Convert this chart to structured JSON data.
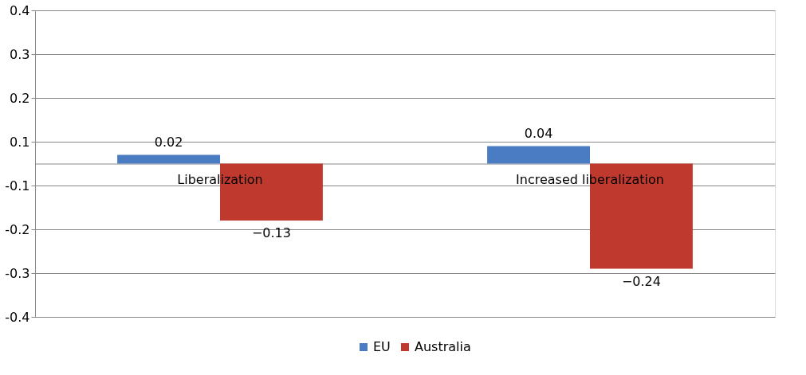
{
  "chart_data": {
    "type": "bar",
    "categories": [
      "Liberalization",
      "Increased liberalization"
    ],
    "series": [
      {
        "name": "EU",
        "color": "#4a7cc4",
        "values": [
          0.02,
          0.04
        ]
      },
      {
        "name": "Australia",
        "color": "#c0392f",
        "values": [
          -0.13,
          -0.24
        ]
      }
    ],
    "ylim": [
      -0.35,
      0.35
    ],
    "yticks": [
      {
        "value": 0.35,
        "label": "0.4"
      },
      {
        "value": 0.25,
        "label": "0.3"
      },
      {
        "value": 0.15,
        "label": "0.2"
      },
      {
        "value": 0.05,
        "label": "0.1"
      },
      {
        "value": -0.05,
        "label": "-0.1"
      },
      {
        "value": -0.15,
        "label": "-0.2"
      },
      {
        "value": -0.25,
        "label": "-0.3"
      },
      {
        "value": -0.35,
        "label": "-0.4"
      }
    ],
    "data_labels": true,
    "grid": "y",
    "legend": "bottom"
  }
}
